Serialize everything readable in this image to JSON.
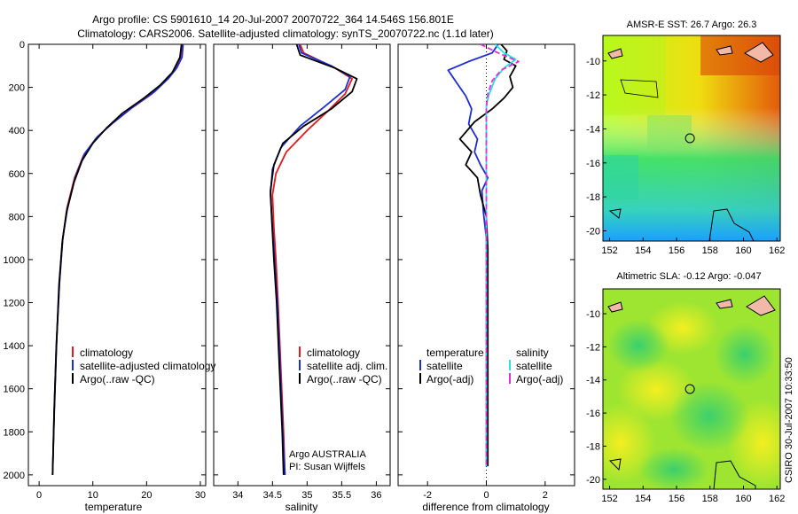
{
  "header": {
    "line1": "Argo profile: CS 5901610_14 20-Jul-2007 20070722_364 14.546S 156.801E",
    "line2": "Climatology: CARS2006. Satellite-adjusted climatology: synTS_20070722.nc (1.1d later)"
  },
  "side_label": "CSIRO 30-Jul-2007 10:33:50",
  "credit": {
    "line1": "Argo AUSTRALIA",
    "line2": "PI: Susan Wijffels"
  },
  "colors": {
    "climatology": "#e41a1c",
    "satellite": "#1f2dd6",
    "argo": "#000000",
    "sat_salinity": "#22e5e5",
    "argo_salinity": "#e52fd8"
  },
  "chart_data": [
    {
      "type": "line",
      "xlabel": "temperature",
      "xlim": [
        -2,
        31
      ],
      "ylim": [
        2050,
        0
      ],
      "xticks": [
        "0",
        "10",
        "20",
        "30"
      ],
      "yticks": [
        "0",
        "200",
        "400",
        "600",
        "800",
        "1000",
        "1200",
        "1400",
        "1600",
        "1800",
        "2000"
      ],
      "legend": [
        "climatology",
        "satellite-adjusted climatology",
        "Argo(..raw -QC)"
      ],
      "series": [
        {
          "name": "climatology",
          "color": "#e41a1c",
          "points": [
            [
              26.6,
              0
            ],
            [
              26.4,
              60
            ],
            [
              25.3,
              120
            ],
            [
              23.5,
              170
            ],
            [
              21.0,
              230
            ],
            [
              17.0,
              300
            ],
            [
              13.0,
              380
            ],
            [
              10.5,
              440
            ],
            [
              8.2,
              520
            ],
            [
              6.6,
              620
            ],
            [
              5.2,
              760
            ],
            [
              4.4,
              900
            ],
            [
              3.8,
              1100
            ],
            [
              3.2,
              1400
            ],
            [
              2.8,
              1700
            ],
            [
              2.5,
              2000
            ]
          ]
        },
        {
          "name": "satellite-adjusted climatology",
          "color": "#1f2dd6",
          "points": [
            [
              26.8,
              0
            ],
            [
              26.6,
              60
            ],
            [
              25.6,
              110
            ],
            [
              24.0,
              160
            ],
            [
              21.5,
              220
            ],
            [
              17.5,
              290
            ],
            [
              13.5,
              370
            ],
            [
              10.8,
              430
            ],
            [
              8.4,
              510
            ],
            [
              6.7,
              620
            ],
            [
              5.3,
              760
            ],
            [
              4.4,
              900
            ],
            [
              3.8,
              1100
            ],
            [
              3.2,
              1400
            ],
            [
              2.8,
              1700
            ],
            [
              2.5,
              2000
            ]
          ]
        },
        {
          "name": "Argo(..raw -QC)",
          "color": "#000000",
          "points": [
            [
              26.5,
              0
            ],
            [
              26.2,
              60
            ],
            [
              24.8,
              130
            ],
            [
              22.5,
              190
            ],
            [
              19.5,
              250
            ],
            [
              15.5,
              320
            ],
            [
              12.5,
              390
            ],
            [
              10.0,
              460
            ],
            [
              8.0,
              540
            ],
            [
              6.5,
              640
            ],
            [
              5.1,
              780
            ],
            [
              4.3,
              920
            ],
            [
              3.7,
              1120
            ],
            [
              3.2,
              1420
            ],
            [
              2.8,
              1720
            ],
            [
              2.5,
              2000
            ]
          ]
        }
      ]
    },
    {
      "type": "line",
      "xlabel": "salinity",
      "xlim": [
        33.65,
        36.2
      ],
      "ylim": [
        2050,
        0
      ],
      "xticks": [
        "34",
        "34.5",
        "35",
        "35.5",
        "36"
      ],
      "legend": [
        "climatology",
        "satellite adj. clim.",
        "Argo(..raw -QC)"
      ],
      "series": [
        {
          "name": "climatology",
          "color": "#e41a1c",
          "points": [
            [
              34.9,
              0
            ],
            [
              34.95,
              40
            ],
            [
              35.4,
              110
            ],
            [
              35.65,
              160
            ],
            [
              35.55,
              230
            ],
            [
              35.3,
              310
            ],
            [
              35.0,
              400
            ],
            [
              34.7,
              500
            ],
            [
              34.55,
              600
            ],
            [
              34.5,
              700
            ],
            [
              34.52,
              850
            ],
            [
              34.55,
              1000
            ],
            [
              34.58,
              1200
            ],
            [
              34.62,
              1500
            ],
            [
              34.66,
              1800
            ],
            [
              34.68,
              2000
            ]
          ]
        },
        {
          "name": "satellite adj. clim.",
          "color": "#1f2dd6",
          "points": [
            [
              34.88,
              0
            ],
            [
              34.92,
              40
            ],
            [
              35.35,
              100
            ],
            [
              35.62,
              150
            ],
            [
              35.55,
              210
            ],
            [
              35.25,
              290
            ],
            [
              34.9,
              380
            ],
            [
              34.62,
              480
            ],
            [
              34.5,
              580
            ],
            [
              34.47,
              700
            ],
            [
              34.5,
              850
            ],
            [
              34.53,
              1000
            ],
            [
              34.57,
              1200
            ],
            [
              34.61,
              1500
            ],
            [
              34.65,
              1800
            ],
            [
              34.68,
              2000
            ]
          ]
        },
        {
          "name": "Argo(..raw -QC)",
          "color": "#000000",
          "points": [
            [
              34.85,
              0
            ],
            [
              34.9,
              50
            ],
            [
              35.4,
              110
            ],
            [
              35.72,
              160
            ],
            [
              35.65,
              220
            ],
            [
              35.35,
              300
            ],
            [
              34.95,
              380
            ],
            [
              34.65,
              460
            ],
            [
              34.52,
              560
            ],
            [
              34.47,
              680
            ],
            [
              34.49,
              820
            ],
            [
              34.52,
              1000
            ],
            [
              34.56,
              1200
            ],
            [
              34.6,
              1500
            ],
            [
              34.64,
              1800
            ],
            [
              34.66,
              2000
            ]
          ]
        }
      ]
    },
    {
      "type": "line",
      "xlabel": "difference from climatology",
      "xlim": [
        -3,
        3
      ],
      "ylim": [
        2050,
        0
      ],
      "xticks": [
        "-2",
        "0",
        "2"
      ],
      "legend_left_title": "temperature",
      "legend_left": [
        "satellite",
        "Argo(-adj)"
      ],
      "legend_right_title": "salinity",
      "legend_right": [
        "satellite",
        "Argo(-adj)"
      ],
      "series": [
        {
          "name": "satellite",
          "color": "#1f2dd6",
          "points": [
            [
              0.4,
              0
            ],
            [
              0.2,
              40
            ],
            [
              -0.6,
              80
            ],
            [
              -1.3,
              120
            ],
            [
              -1.0,
              180
            ],
            [
              -0.7,
              240
            ],
            [
              -0.5,
              300
            ],
            [
              -0.6,
              370
            ],
            [
              -0.3,
              440
            ],
            [
              -0.4,
              500
            ],
            [
              -0.2,
              560
            ],
            [
              0.05,
              620
            ],
            [
              -0.15,
              680
            ],
            [
              -0.1,
              780
            ],
            [
              0.0,
              900
            ],
            [
              0.0,
              1200
            ],
            [
              0.0,
              1600
            ],
            [
              0.0,
              1960
            ]
          ]
        },
        {
          "name": "Argo(-adj)",
          "color": "#000000",
          "points": [
            [
              0.5,
              0
            ],
            [
              0.7,
              30
            ],
            [
              0.6,
              70
            ],
            [
              1.0,
              100
            ],
            [
              0.8,
              150
            ],
            [
              0.9,
              200
            ],
            [
              0.6,
              250
            ],
            [
              0.2,
              300
            ],
            [
              -0.4,
              360
            ],
            [
              -0.9,
              440
            ],
            [
              -0.5,
              500
            ],
            [
              -0.7,
              560
            ],
            [
              -0.3,
              620
            ],
            [
              -0.2,
              700
            ],
            [
              0.0,
              800
            ],
            [
              0.05,
              950
            ],
            [
              0.05,
              1300
            ],
            [
              0.05,
              1700
            ],
            [
              0.05,
              1960
            ]
          ]
        },
        {
          "name": "satellite",
          "color": "#22e5e5",
          "points": [
            [
              0.3,
              0
            ],
            [
              0.6,
              40
            ],
            [
              1.0,
              70
            ],
            [
              0.6,
              110
            ],
            [
              0.3,
              160
            ],
            [
              0.1,
              230
            ],
            [
              0.0,
              280
            ],
            [
              0.0,
              400
            ],
            [
              0.0,
              600
            ],
            [
              0.0,
              900
            ],
            [
              0.0,
              1300
            ],
            [
              0.0,
              1700
            ],
            [
              0.0,
              1960
            ]
          ]
        },
        {
          "name": "Argo(-adj)",
          "color": "#e52fd8",
          "points": [
            [
              -0.2,
              0
            ],
            [
              0.4,
              40
            ],
            [
              1.1,
              80
            ],
            [
              0.5,
              120
            ],
            [
              0.2,
              170
            ],
            [
              0.05,
              230
            ],
            [
              0.0,
              300
            ],
            [
              0.0,
              500
            ],
            [
              0.0,
              800
            ],
            [
              0.0,
              1200
            ],
            [
              0.0,
              1600
            ],
            [
              0.0,
              1960
            ]
          ]
        }
      ]
    },
    {
      "type": "heatmap",
      "title": "AMSR-E SST: 26.7 Argo: 26.3",
      "xlim": [
        151.6,
        162.2
      ],
      "ylim": [
        -20.6,
        -8.5
      ],
      "xticks": [
        "152",
        "154",
        "156",
        "158",
        "160",
        "162"
      ],
      "yticks": [
        "-10",
        "-12",
        "-14",
        "-16",
        "-18",
        "-20"
      ],
      "marker": [
        156.8,
        -14.55
      ]
    },
    {
      "type": "heatmap",
      "title": "Altimetric SLA: -0.12 Argo: -0.047",
      "xlim": [
        151.6,
        162.2
      ],
      "ylim": [
        -20.6,
        -8.5
      ],
      "xticks": [
        "152",
        "154",
        "156",
        "158",
        "160",
        "162"
      ],
      "yticks": [
        "-10",
        "-12",
        "-14",
        "-16",
        "-18",
        "-20"
      ],
      "marker": [
        156.8,
        -14.55
      ]
    }
  ]
}
